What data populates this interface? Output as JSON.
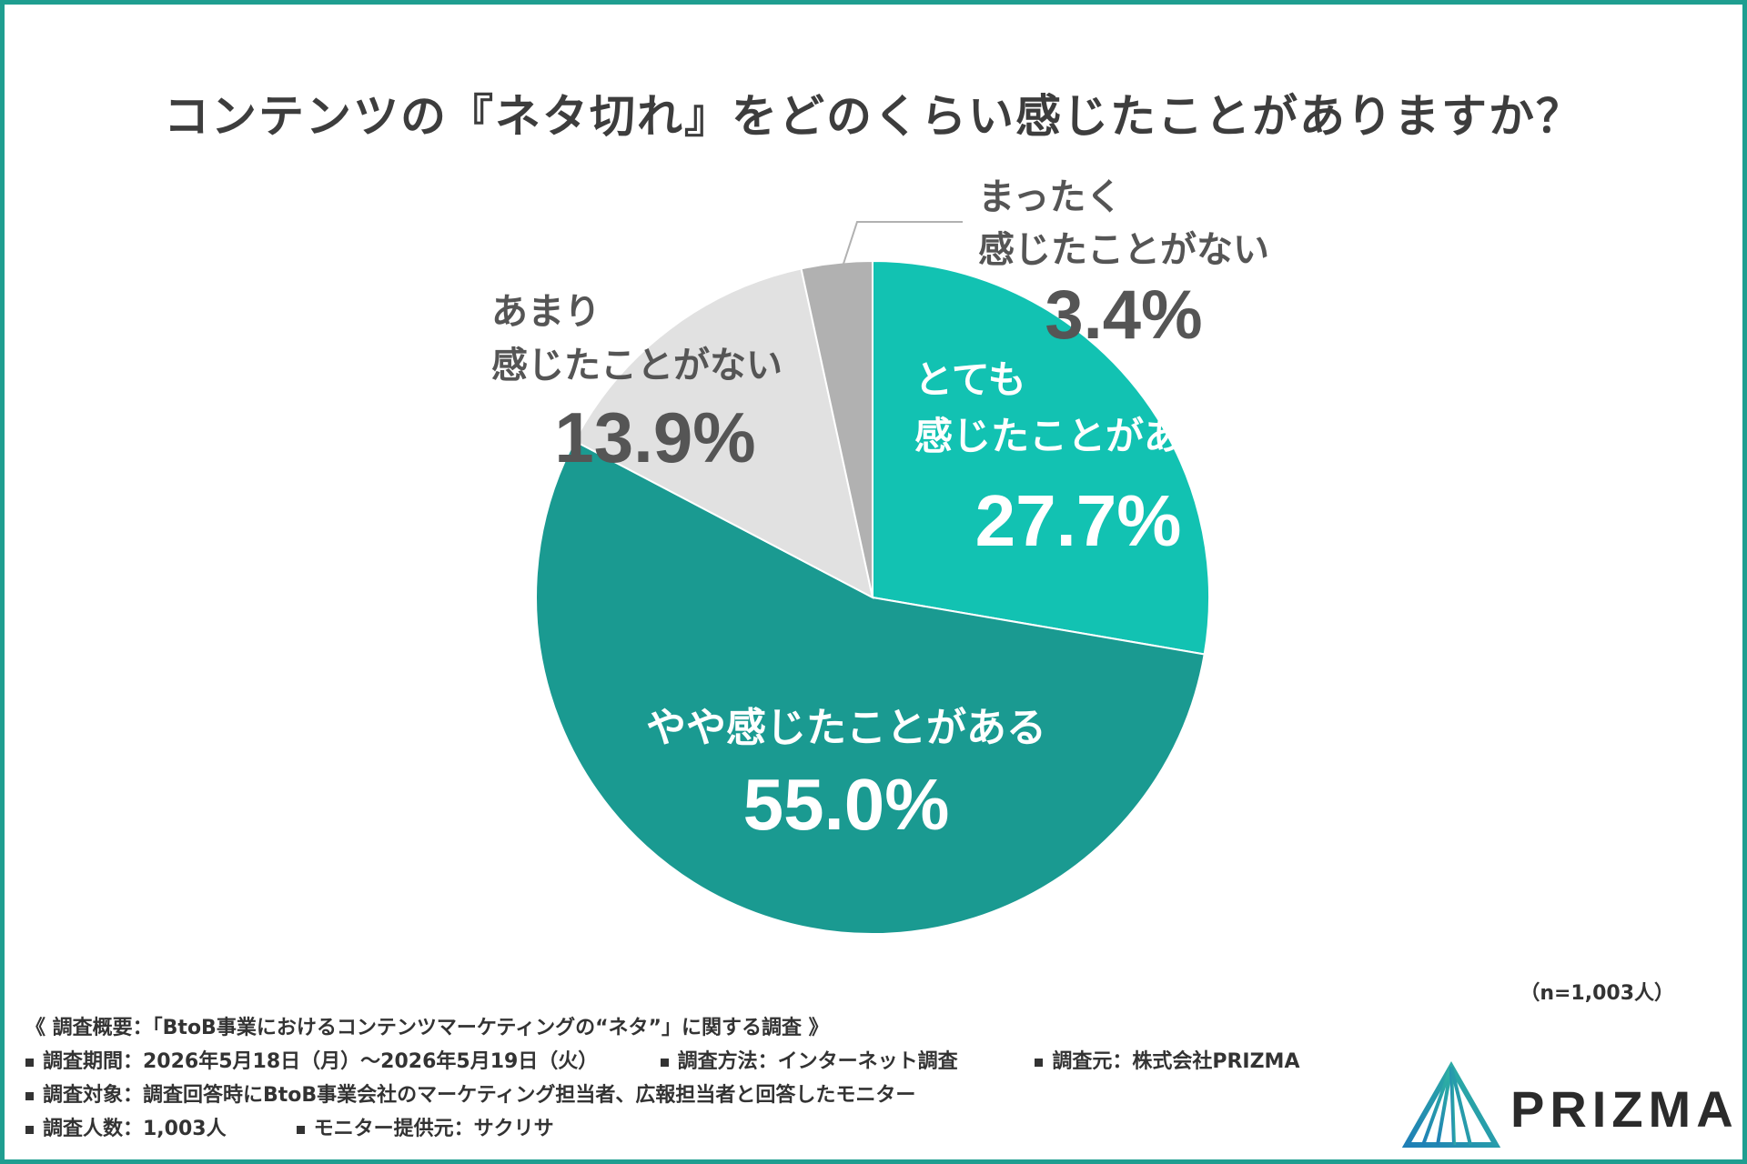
{
  "title": "コンテンツの『ネタ切れ』をどのくらい感じたことがありますか？",
  "n_note": "（n=1,003人）",
  "colors": {
    "frame": "#1f9e90",
    "slices": [
      "#12c2b2",
      "#1a9a91",
      "#e1e1e1",
      "#b1b1b1"
    ],
    "label_light": "#ffffff",
    "label_dark": "#555555"
  },
  "chart_data": {
    "type": "pie",
    "start_angle_deg": 0,
    "direction": "clockwise",
    "slices": [
      {
        "label_lines": [
          "とても",
          "感じたことがある"
        ],
        "value": 27.7,
        "pct": "27.7%"
      },
      {
        "label_lines": [
          "やや感じたことがある"
        ],
        "value": 55.0,
        "pct": "55.0%"
      },
      {
        "label_lines": [
          "あまり",
          "感じたことがない"
        ],
        "value": 13.9,
        "pct": "13.9%"
      },
      {
        "label_lines": [
          "まったく",
          "感じたことがない"
        ],
        "value": 3.4,
        "pct": "3.4%"
      }
    ]
  },
  "footer": {
    "heading": "《 調査概要：「BtoB事業におけるコンテンツマーケティングの“ネタ”」に関する調査 》",
    "period": "調査期間：2026年5月18日（月）～2026年5月19日（火）",
    "method": "調査方法：インターネット調査",
    "source": "調査元：株式会社PRIZMA",
    "target": "調査対象：調査回答時にBtoB事業会社のマーケティング担当者、広報担当者と回答したモニター",
    "count": "調査人数：1,003人",
    "provider": "モニター提供元：サクリサ"
  },
  "logo": {
    "text": "PRIZMA",
    "icon": "prism-triangle-icon"
  }
}
